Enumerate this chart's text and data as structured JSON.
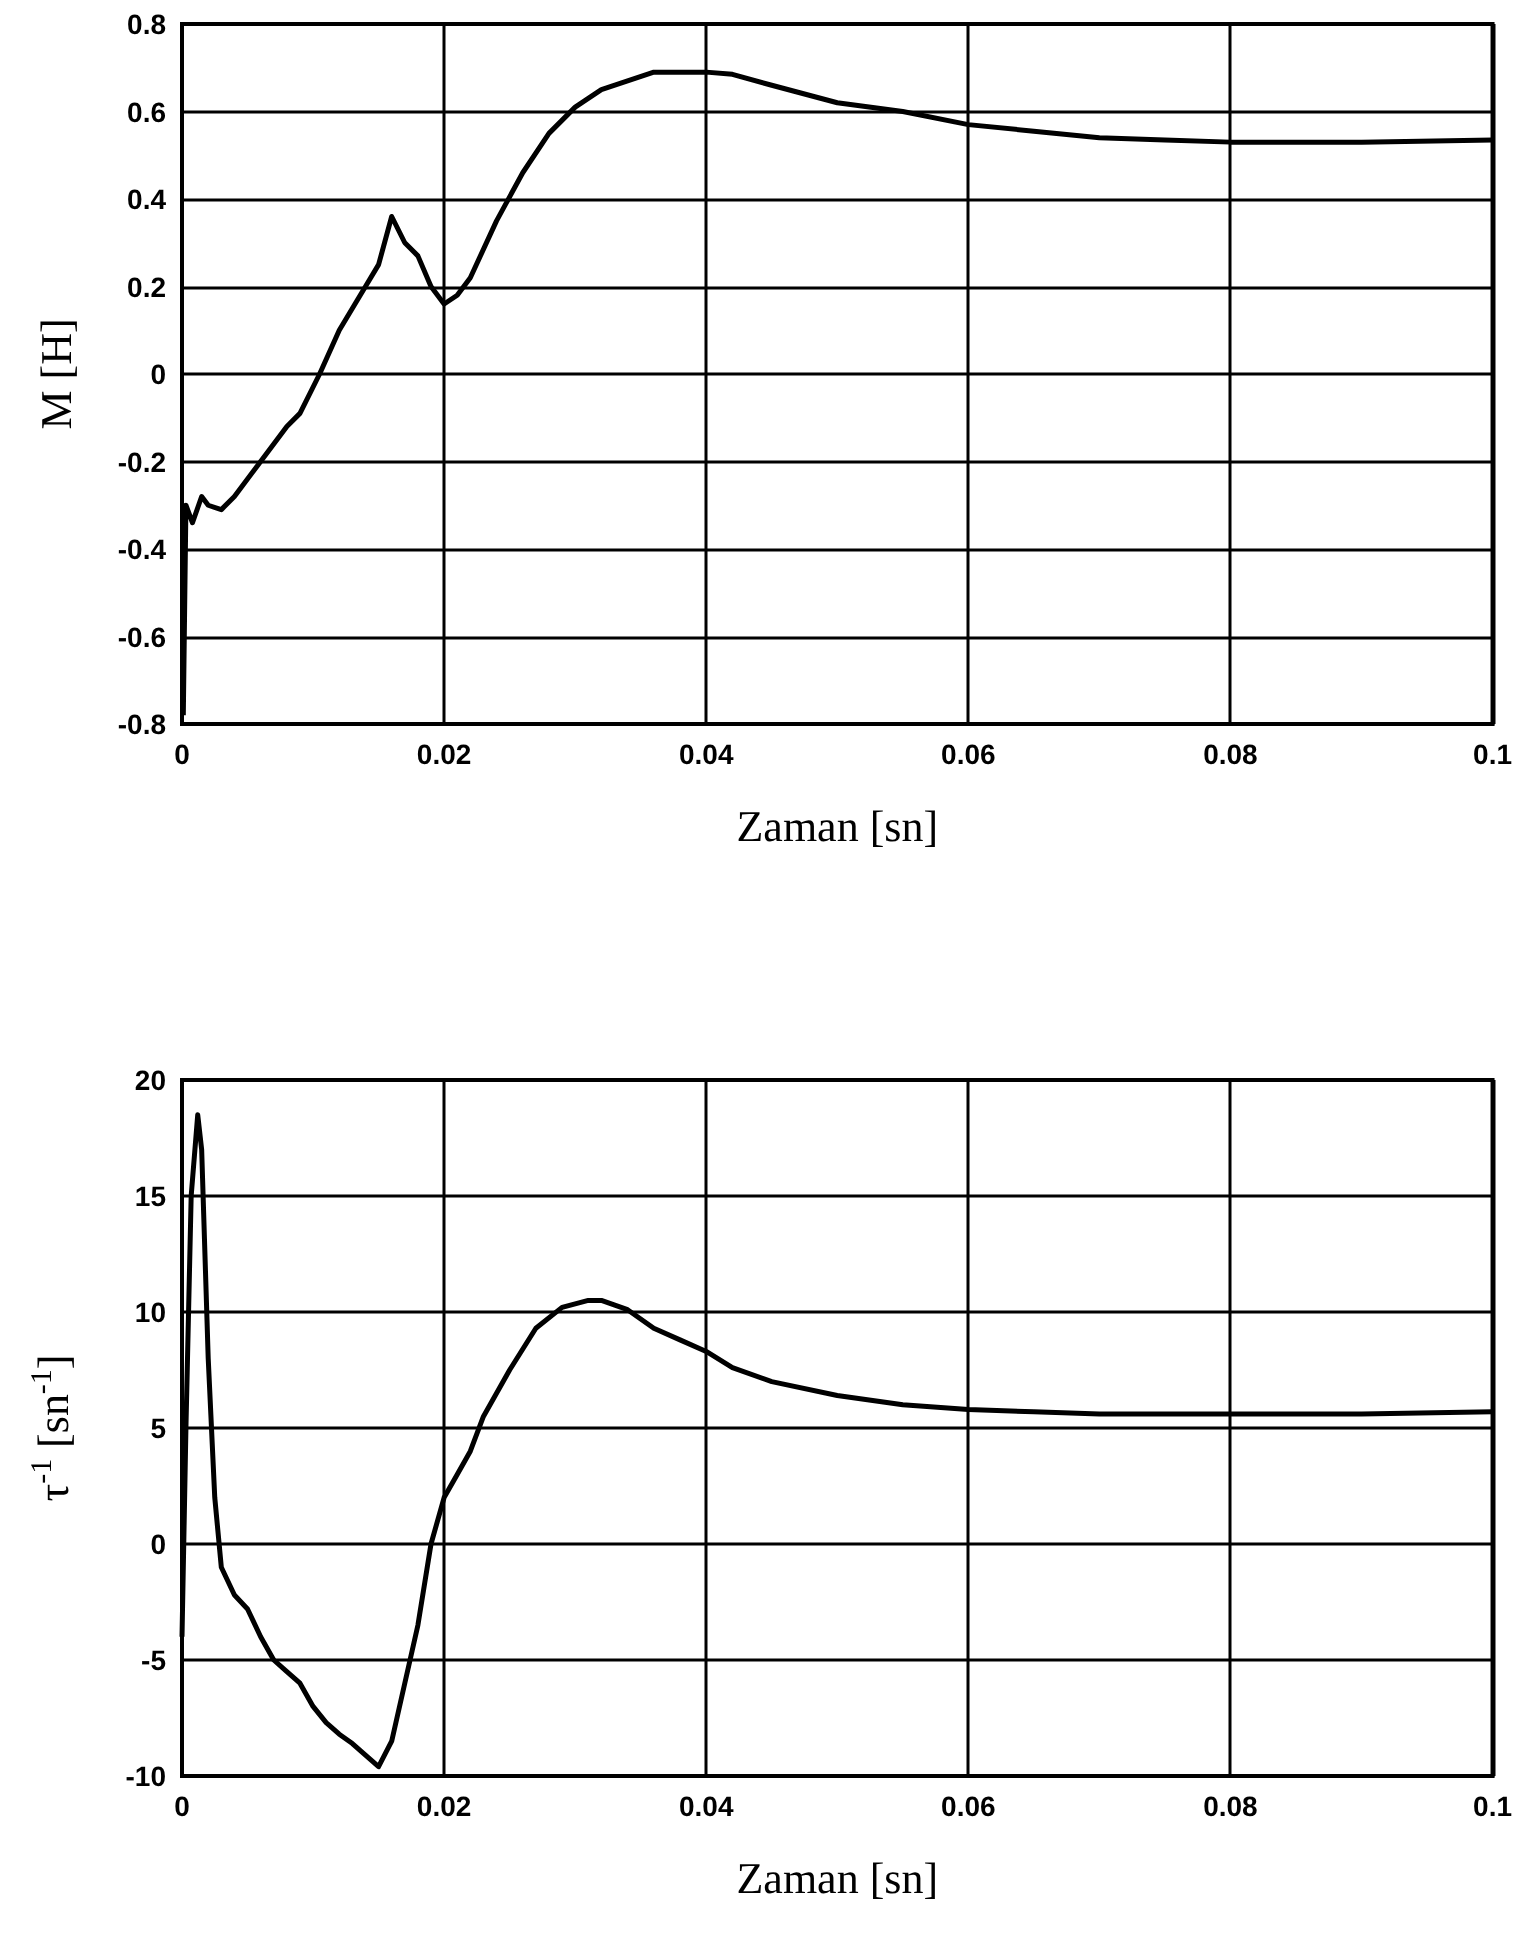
{
  "chart_data": [
    {
      "type": "line",
      "xlabel": "Zaman [sn]",
      "ylabel": "M [H]",
      "xlim": [
        0,
        0.1
      ],
      "ylim": [
        -0.8,
        0.8
      ],
      "xticks": [
        0,
        0.02,
        0.04,
        0.06,
        0.08,
        0.1
      ],
      "yticks": [
        -0.8,
        -0.6,
        -0.4,
        -0.2,
        0,
        0.2,
        0.4,
        0.6,
        0.8
      ],
      "grid": true,
      "marker": "none",
      "line_style": "solid",
      "series": [
        {
          "color": "#000000",
          "x": [
            0.0001,
            0.0003,
            0.0008,
            0.0015,
            0.002,
            0.003,
            0.004,
            0.006,
            0.008,
            0.009,
            0.0105,
            0.012,
            0.014,
            0.015,
            0.016,
            0.017,
            0.018,
            0.019,
            0.02,
            0.021,
            0.022,
            0.024,
            0.026,
            0.028,
            0.03,
            0.032,
            0.034,
            0.036,
            0.038,
            0.04,
            0.042,
            0.045,
            0.05,
            0.055,
            0.06,
            0.065,
            0.07,
            0.075,
            0.08,
            0.09,
            0.1
          ],
          "values": [
            -0.78,
            -0.3,
            -0.34,
            -0.28,
            -0.3,
            -0.31,
            -0.28,
            -0.2,
            -0.12,
            -0.09,
            0,
            0.1,
            0.2,
            0.25,
            0.36,
            0.3,
            0.27,
            0.2,
            0.16,
            0.18,
            0.22,
            0.35,
            0.46,
            0.55,
            0.61,
            0.65,
            0.67,
            0.69,
            0.69,
            0.69,
            0.685,
            0.66,
            0.62,
            0.6,
            0.57,
            0.555,
            0.54,
            0.535,
            0.53,
            0.53,
            0.535
          ]
        }
      ]
    },
    {
      "type": "line",
      "xlabel": "Zaman [sn]",
      "ylabel": "τ$^{-1}$ [sn$^{-1}$]",
      "xlim": [
        0,
        0.1
      ],
      "ylim": [
        -10,
        20
      ],
      "xticks": [
        0,
        0.02,
        0.04,
        0.06,
        0.08,
        0.1
      ],
      "yticks": [
        -10,
        -5,
        0,
        5,
        10,
        15,
        20
      ],
      "grid": true,
      "marker": "none",
      "line_style": "solid",
      "series": [
        {
          "color": "#000000",
          "x": [
            0,
            0.0003,
            0.0007,
            0.0012,
            0.0015,
            0.002,
            0.0025,
            0.003,
            0.004,
            0.005,
            0.006,
            0.007,
            0.008,
            0.009,
            0.01,
            0.011,
            0.012,
            0.013,
            0.014,
            0.015,
            0.016,
            0.017,
            0.018,
            0.019,
            0.02,
            0.021,
            0.022,
            0.023,
            0.025,
            0.027,
            0.029,
            0.031,
            0.032,
            0.034,
            0.036,
            0.038,
            0.04,
            0.042,
            0.045,
            0.05,
            0.055,
            0.06,
            0.065,
            0.07,
            0.08,
            0.09,
            0.1
          ],
          "values": [
            -4,
            5,
            15,
            18.5,
            17,
            8,
            2,
            -1,
            -2.2,
            -2.8,
            -4,
            -5,
            -5.5,
            -6,
            -7,
            -7.7,
            -8.2,
            -8.6,
            -9.1,
            -9.6,
            -8.5,
            -6,
            -3.5,
            0,
            2,
            3,
            4,
            5.5,
            7.5,
            9.3,
            10.2,
            10.5,
            10.5,
            10.1,
            9.3,
            8.8,
            8.3,
            7.6,
            7,
            6.4,
            6,
            5.8,
            5.7,
            5.6,
            5.6,
            5.6,
            5.7
          ]
        }
      ]
    }
  ]
}
